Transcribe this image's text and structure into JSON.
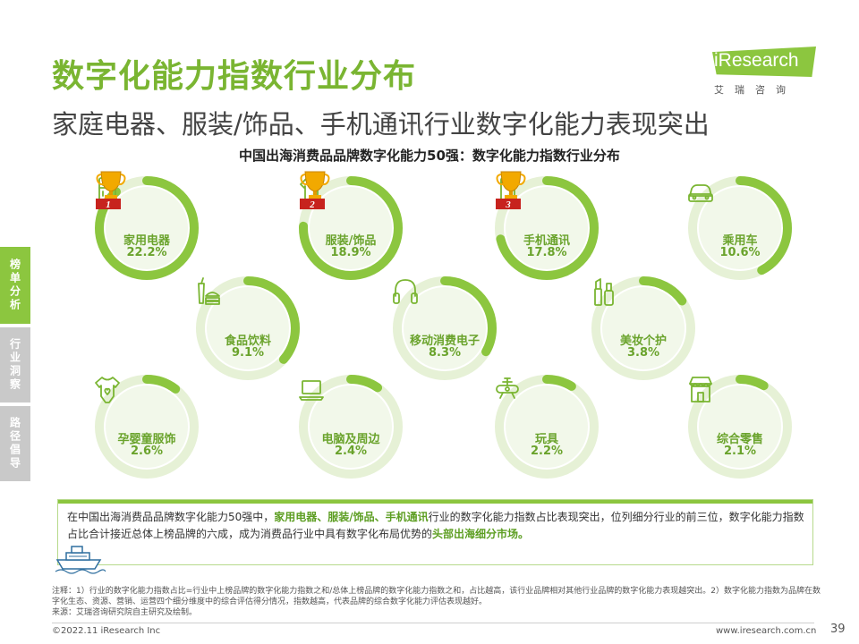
{
  "header": {
    "title": "数字化能力指数行业分布",
    "subtitle": "家庭电器、服装/饰品、手机通讯行业数字化能力表现突出",
    "logo_text": "iResearch",
    "logo_cn": "艾瑞咨询"
  },
  "sidebar": {
    "tabs": [
      {
        "label": "榜单分析",
        "active": true
      },
      {
        "label": "行业洞察",
        "active": false
      },
      {
        "label": "路径倡导",
        "active": false
      }
    ]
  },
  "colors": {
    "accent": "#8cc63f",
    "ring_bg": "#e6f1d6",
    "inner": "#f2f8ea",
    "text_green": "#6aa32c"
  },
  "chart_data": {
    "type": "pie",
    "title": "中国出海消费品品牌数字化能力50强：数字化能力指数行业分布",
    "categories": [
      {
        "name": "家用电器",
        "value": 22.2,
        "label": "22.2%",
        "icon": "refrigerator-icon",
        "rank": "1"
      },
      {
        "name": "服装/饰品",
        "value": 18.9,
        "label": "18.9%",
        "icon": "shirt-icon",
        "rank": "2"
      },
      {
        "name": "手机通讯",
        "value": 17.8,
        "label": "17.8%",
        "icon": "phone-icon",
        "rank": "3"
      },
      {
        "name": "乘用车",
        "value": 10.6,
        "label": "10.6%",
        "icon": "car-icon"
      },
      {
        "name": "食品饮料",
        "value": 9.1,
        "label": "9.1%",
        "icon": "food-icon"
      },
      {
        "name": "移动消费电子",
        "value": 8.3,
        "label": "8.3%",
        "icon": "headphones-icon"
      },
      {
        "name": "美妆个护",
        "value": 3.8,
        "label": "3.8%",
        "icon": "cosmetics-icon"
      },
      {
        "name": "孕婴童服饰",
        "value": 2.6,
        "label": "2.6%",
        "icon": "baby-onesie-icon"
      },
      {
        "name": "电脑及周边",
        "value": 2.4,
        "label": "2.4%",
        "icon": "laptop-icon"
      },
      {
        "name": "玩具",
        "value": 2.2,
        "label": "2.2%",
        "icon": "toy-icon"
      },
      {
        "name": "综合零售",
        "value": 2.1,
        "label": "2.1%",
        "icon": "store-icon"
      }
    ]
  },
  "note": {
    "part1": "在中国出海消费品品牌数字化能力50强中，",
    "highlight1": "家用电器、服装/饰品、手机通讯",
    "part2": "行业的数字化能力指数占比表现突出，位列细分行业的前三位，数字化能力指数占比合计接近总体上榜品牌的六成，成为消费品行业中具有数字化布局优势的",
    "highlight2": "头部出海细分市场。"
  },
  "footnote": {
    "line1": "注释：1）行业的数字化能力指数占比=行业中上榜品牌的数字化能力指数之和/总体上榜品牌的数字化能力指数之和，占比越高，该行业品牌相对其他行业品牌的数字化能力表现越突出。2）数字化能力指数为品牌在数字化生态、资源、营销、运营四个细分维度中的综合评估得分情况，指数越高，代表品牌的综合数字化能力评估表现越好。",
    "line2": "来源：艾瑞咨询研究院自主研究及绘制。"
  },
  "footer": {
    "copyright": "©2022.11 iResearch Inc",
    "website": "www.iresearch.com.cn",
    "page": "39"
  }
}
